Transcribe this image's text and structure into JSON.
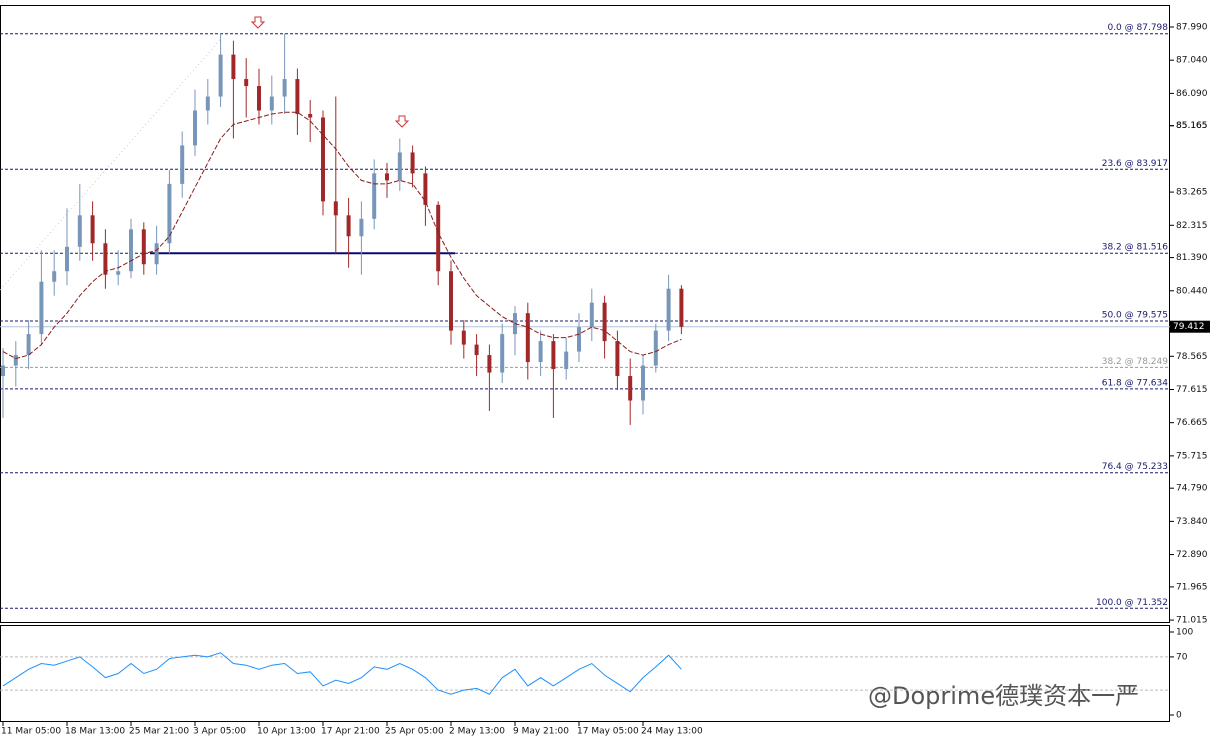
{
  "chart_data": {
    "type": "candlestick",
    "categories": [
      "11 Mar 05:00",
      null,
      null,
      null,
      null,
      "18 Mar 13:00",
      null,
      null,
      null,
      null,
      "25 Mar 21:00",
      null,
      null,
      null,
      null,
      "3 Apr 05:00",
      null,
      null,
      null,
      null,
      "10 Apr 13:00",
      null,
      null,
      null,
      null,
      "17 Apr 21:00",
      null,
      null,
      null,
      null,
      "25 Apr 05:00",
      null,
      null,
      null,
      null,
      "2 May 13:00",
      null,
      null,
      null,
      null,
      "9 May 21:00",
      null,
      null,
      null,
      null,
      "17 May 05:00",
      null,
      null,
      null,
      null,
      "24 May 13:00",
      null,
      null,
      null
    ],
    "open": [
      78.0,
      78.3,
      78.6,
      79.2,
      80.7,
      81.0,
      81.7,
      82.6,
      81.8,
      80.9,
      81.0,
      82.2,
      81.2,
      81.8,
      83.5,
      84.6,
      85.6,
      86.0,
      87.2,
      86.5,
      86.3,
      85.6,
      86.0,
      86.5,
      85.5,
      85.4,
      83.0,
      82.6,
      82.0,
      82.5,
      83.8,
      83.6,
      84.4,
      83.8,
      82.9,
      81.0,
      79.3,
      78.9,
      78.6,
      78.1,
      79.2,
      79.8,
      78.4,
      79.0,
      78.2,
      78.7,
      79.4,
      80.1,
      79.0,
      78.0,
      77.3,
      78.3,
      79.3,
      80.5
    ],
    "high": [
      78.8,
      79.0,
      79.6,
      81.6,
      81.6,
      82.8,
      83.5,
      83.0,
      82.2,
      81.6,
      82.5,
      82.4,
      82.3,
      83.9,
      85.0,
      86.2,
      86.5,
      87.8,
      87.6,
      87.1,
      86.8,
      86.6,
      87.8,
      86.8,
      85.9,
      85.6,
      86.0,
      83.1,
      83.0,
      84.2,
      84.1,
      84.8,
      84.6,
      84.0,
      83.0,
      81.3,
      79.6,
      79.2,
      78.9,
      79.5,
      80.0,
      80.1,
      79.3,
      79.2,
      79.1,
      79.8,
      80.5,
      80.3,
      79.3,
      78.5,
      78.6,
      79.5,
      80.9,
      80.6
    ],
    "low": [
      76.8,
      77.7,
      78.2,
      78.9,
      80.3,
      80.6,
      81.3,
      81.3,
      80.5,
      80.6,
      80.8,
      80.9,
      80.9,
      81.5,
      83.1,
      84.3,
      85.2,
      85.7,
      84.8,
      85.4,
      85.2,
      85.2,
      85.5,
      84.9,
      84.7,
      82.6,
      81.5,
      81.1,
      80.9,
      82.2,
      83.1,
      83.3,
      83.4,
      82.3,
      80.6,
      78.9,
      78.5,
      78.0,
      77.0,
      77.8,
      78.6,
      77.9,
      78.0,
      76.8,
      77.9,
      78.4,
      79.0,
      78.5,
      77.6,
      76.6,
      76.9,
      78.1,
      79.0,
      79.2
    ],
    "close": [
      78.3,
      78.6,
      79.2,
      80.7,
      81.0,
      81.7,
      82.6,
      81.8,
      80.9,
      81.0,
      82.2,
      81.2,
      81.8,
      83.5,
      84.6,
      85.6,
      86.0,
      87.2,
      86.5,
      86.3,
      85.6,
      86.0,
      86.5,
      85.5,
      85.4,
      83.0,
      82.6,
      82.0,
      82.5,
      83.8,
      83.6,
      84.4,
      83.8,
      82.9,
      81.0,
      79.3,
      78.9,
      78.6,
      78.1,
      79.2,
      79.8,
      78.4,
      79.0,
      78.2,
      78.7,
      79.4,
      80.1,
      79.0,
      78.0,
      77.3,
      78.3,
      79.3,
      80.5,
      79.41
    ],
    "ma": [
      78.7,
      78.5,
      78.6,
      78.9,
      79.4,
      79.8,
      80.3,
      80.7,
      81.0,
      81.1,
      81.3,
      81.5,
      81.6,
      82.0,
      82.7,
      83.4,
      84.1,
      84.8,
      85.2,
      85.3,
      85.4,
      85.5,
      85.55,
      85.55,
      85.3,
      84.9,
      84.5,
      84.0,
      83.6,
      83.5,
      83.5,
      83.6,
      83.5,
      83.0,
      82.1,
      81.4,
      80.8,
      80.3,
      80.0,
      79.7,
      79.5,
      79.4,
      79.2,
      79.1,
      79.1,
      79.2,
      79.4,
      79.3,
      79.0,
      78.7,
      78.6,
      78.7,
      78.9,
      79.05
    ],
    "up_color": "#7896b8",
    "down_color": "#a02828",
    "ma_color": "#8b1a1a",
    "ylim": [
      70.96,
      88.62
    ],
    "yticks": [
      {
        "value": 87.99,
        "label": "87.990"
      },
      {
        "value": 87.04,
        "label": "87.040"
      },
      {
        "value": 86.09,
        "label": "86.090"
      },
      85.165,
      85.165,
      83.265,
      {
        "value": 82.315,
        "label": "82.315"
      },
      {
        "value": 81.39,
        "label": "81.390"
      },
      {
        "value": 80.44,
        "label": "80.440"
      },
      78.565,
      77.615,
      76.665,
      75.715,
      {
        "value": 74.79,
        "label": "74.790"
      },
      {
        "value": 73.84,
        "label": "73.840"
      },
      {
        "value": 72.89,
        "label": "72.890"
      },
      71.965,
      71.015
    ],
    "fib_levels": [
      {
        "label": "0.0 @ 87.798",
        "value": 87.798,
        "color": "#1a1a6e"
      },
      {
        "label": "23.6 @ 83.917",
        "value": 83.917,
        "color": "#1a1a6e"
      },
      {
        "label": "38.2 @ 81.516",
        "value": 81.516,
        "color": "#1a1a6e"
      },
      {
        "label": "50.0 @ 79.575",
        "value": 79.575,
        "color": "#1a1a6e"
      },
      {
        "label": "38.2 @ 78.249",
        "value": 78.249,
        "color": "#999999"
      },
      {
        "label": "61.8 @ 77.634",
        "value": 77.634,
        "color": "#1a1a6e"
      },
      {
        "label": "76.4 @ 75.233",
        "value": 75.233,
        "color": "#1a1a6e"
      },
      {
        "label": "100.0 @ 71.352",
        "value": 71.352,
        "color": "#1a1a6e"
      }
    ],
    "current_price": {
      "value": 79.412,
      "label": "79.412"
    },
    "rsi": {
      "values": [
        35,
        45,
        55,
        62,
        60,
        65,
        70,
        58,
        45,
        50,
        62,
        50,
        55,
        68,
        70,
        72,
        70,
        75,
        62,
        60,
        55,
        60,
        62,
        50,
        52,
        35,
        42,
        38,
        45,
        58,
        55,
        62,
        55,
        45,
        30,
        25,
        30,
        32,
        25,
        45,
        55,
        35,
        45,
        35,
        45,
        55,
        62,
        48,
        38,
        28,
        45,
        58,
        72,
        55
      ],
      "color": "#1e90ff",
      "ylim": [
        0,
        100
      ],
      "yticks": [
        100,
        70,
        0
      ],
      "levels": [
        70,
        30
      ]
    },
    "watermark": "@Doprime德璞资本一严"
  }
}
